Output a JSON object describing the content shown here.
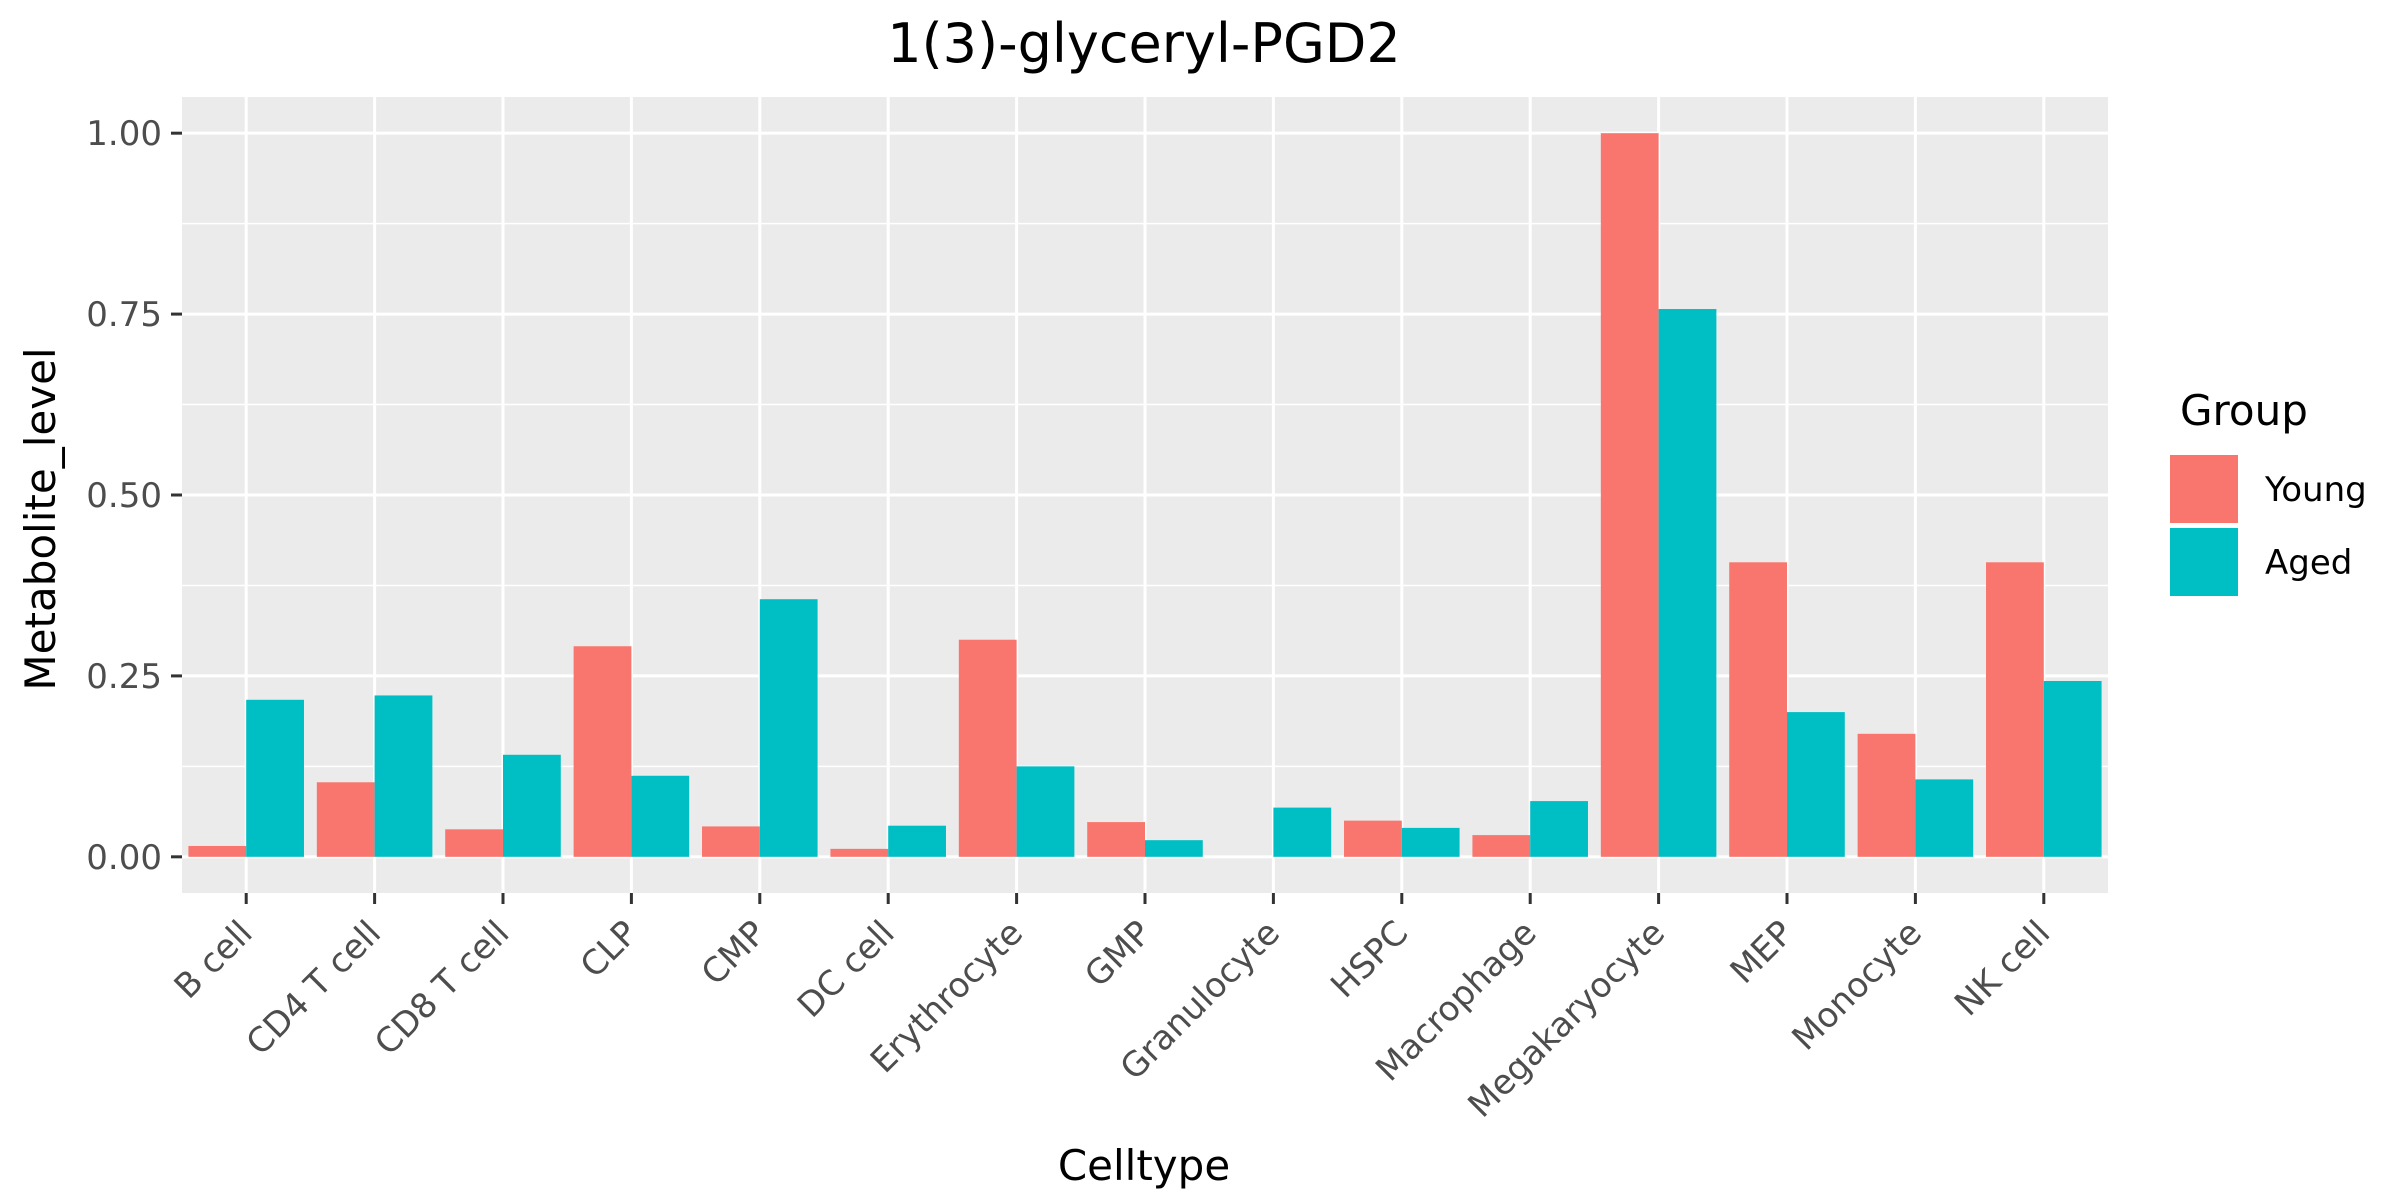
{
  "chart_data": {
    "type": "bar",
    "title": "1(3)-glyceryl-PGD2",
    "xlabel": "Celltype",
    "ylabel": "Metabolite_level",
    "categories": [
      "B cell",
      "CD4 T cell",
      "CD8 T cell",
      "CLP",
      "CMP",
      "DC cell",
      "Erythrocyte",
      "GMP",
      "Granulocyte",
      "HSPC",
      "Macrophage",
      "Megakaryocyte",
      "MEP",
      "Monocyte",
      "NK cell"
    ],
    "series": [
      {
        "name": "Young",
        "color": "#F8766D",
        "values": [
          0.015,
          0.103,
          0.038,
          0.291,
          0.042,
          0.011,
          0.3,
          0.048,
          0.0,
          0.05,
          0.03,
          1.0,
          0.407,
          0.17,
          0.407
        ]
      },
      {
        "name": "Aged",
        "color": "#00BFC4",
        "values": [
          0.217,
          0.223,
          0.141,
          0.112,
          0.356,
          0.043,
          0.125,
          0.023,
          0.068,
          0.04,
          0.077,
          0.757,
          0.2,
          0.107,
          0.243
        ]
      }
    ],
    "ylim": [
      -0.05,
      1.05
    ],
    "yticks": [
      0.0,
      0.25,
      0.5,
      0.75,
      1.0
    ],
    "ytick_labels": [
      "0.00",
      "0.25",
      "0.50",
      "0.75",
      "1.00"
    ],
    "grid": true,
    "legend": {
      "title": "Group",
      "position": "right"
    },
    "panel_color": "#EBEBEB",
    "grid_color": "#FFFFFF"
  }
}
